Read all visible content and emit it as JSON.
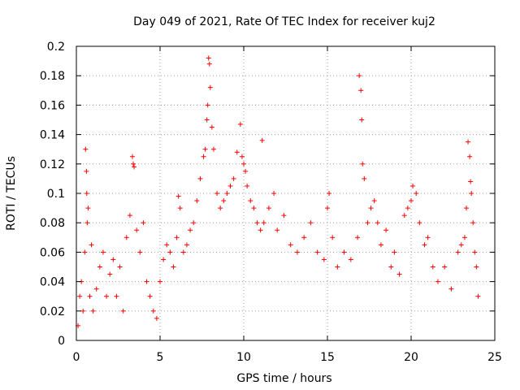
{
  "chart_data": {
    "type": "scatter",
    "title": "Day 049 of 2021, Rate Of TEC Index for receiver kuj2",
    "xlabel": "GPS time / hours",
    "ylabel": "ROTI / TECUs",
    "xlim": [
      0,
      25
    ],
    "ylim": [
      0,
      0.2
    ],
    "x_ticks": [
      0,
      5,
      10,
      15,
      20,
      25
    ],
    "x_tick_labels": [
      "0",
      "5",
      "10",
      "15",
      "20",
      "25"
    ],
    "y_ticks": [
      0,
      0.02,
      0.04,
      0.06,
      0.08,
      0.1,
      0.12,
      0.14,
      0.16,
      0.18,
      0.2
    ],
    "y_tick_labels": [
      "0",
      "0.02",
      "0.04",
      "0.06",
      "0.08",
      "0.1",
      "0.12",
      "0.14",
      "0.16",
      "0.18",
      "0.2"
    ],
    "grid": true,
    "marker": "plus",
    "color": "#ff0000",
    "series": [
      {
        "name": "ROTI",
        "points": [
          [
            0.1,
            0.01
          ],
          [
            0.2,
            0.03
          ],
          [
            0.3,
            0.04
          ],
          [
            0.4,
            0.02
          ],
          [
            0.5,
            0.06
          ],
          [
            0.55,
            0.13
          ],
          [
            0.6,
            0.115
          ],
          [
            0.62,
            0.1
          ],
          [
            0.65,
            0.08
          ],
          [
            0.7,
            0.09
          ],
          [
            0.8,
            0.03
          ],
          [
            0.9,
            0.065
          ],
          [
            1.0,
            0.02
          ],
          [
            1.2,
            0.035
          ],
          [
            1.4,
            0.05
          ],
          [
            1.6,
            0.06
          ],
          [
            1.8,
            0.03
          ],
          [
            2.0,
            0.045
          ],
          [
            2.2,
            0.055
          ],
          [
            2.4,
            0.03
          ],
          [
            2.6,
            0.05
          ],
          [
            2.8,
            0.02
          ],
          [
            3.0,
            0.07
          ],
          [
            3.2,
            0.085
          ],
          [
            3.35,
            0.125
          ],
          [
            3.4,
            0.12
          ],
          [
            3.45,
            0.118
          ],
          [
            3.6,
            0.075
          ],
          [
            3.8,
            0.06
          ],
          [
            4.0,
            0.08
          ],
          [
            4.2,
            0.04
          ],
          [
            4.4,
            0.03
          ],
          [
            4.6,
            0.02
          ],
          [
            4.8,
            0.015
          ],
          [
            5.0,
            0.04
          ],
          [
            5.2,
            0.055
          ],
          [
            5.4,
            0.065
          ],
          [
            5.6,
            0.06
          ],
          [
            5.8,
            0.05
          ],
          [
            6.0,
            0.07
          ],
          [
            6.1,
            0.098
          ],
          [
            6.2,
            0.09
          ],
          [
            6.4,
            0.06
          ],
          [
            6.6,
            0.065
          ],
          [
            6.8,
            0.075
          ],
          [
            7.0,
            0.08
          ],
          [
            7.2,
            0.095
          ],
          [
            7.4,
            0.11
          ],
          [
            7.6,
            0.125
          ],
          [
            7.7,
            0.13
          ],
          [
            7.8,
            0.15
          ],
          [
            7.85,
            0.16
          ],
          [
            7.9,
            0.192
          ],
          [
            7.95,
            0.188
          ],
          [
            8.0,
            0.172
          ],
          [
            8.1,
            0.145
          ],
          [
            8.2,
            0.13
          ],
          [
            8.4,
            0.1
          ],
          [
            8.6,
            0.09
          ],
          [
            8.8,
            0.095
          ],
          [
            9.0,
            0.1
          ],
          [
            9.2,
            0.105
          ],
          [
            9.4,
            0.11
          ],
          [
            9.6,
            0.128
          ],
          [
            9.8,
            0.147
          ],
          [
            9.9,
            0.125
          ],
          [
            10.0,
            0.12
          ],
          [
            10.1,
            0.115
          ],
          [
            10.2,
            0.105
          ],
          [
            10.4,
            0.095
          ],
          [
            10.6,
            0.09
          ],
          [
            10.8,
            0.08
          ],
          [
            11.0,
            0.075
          ],
          [
            11.1,
            0.136
          ],
          [
            11.2,
            0.08
          ],
          [
            11.5,
            0.09
          ],
          [
            11.8,
            0.1
          ],
          [
            12.0,
            0.075
          ],
          [
            12.4,
            0.085
          ],
          [
            12.8,
            0.065
          ],
          [
            13.2,
            0.06
          ],
          [
            13.6,
            0.07
          ],
          [
            14.0,
            0.08
          ],
          [
            14.4,
            0.06
          ],
          [
            14.8,
            0.055
          ],
          [
            15.0,
            0.09
          ],
          [
            15.1,
            0.1
          ],
          [
            15.3,
            0.07
          ],
          [
            15.6,
            0.05
          ],
          [
            16.0,
            0.06
          ],
          [
            16.4,
            0.055
          ],
          [
            16.8,
            0.07
          ],
          [
            16.9,
            0.18
          ],
          [
            17.0,
            0.17
          ],
          [
            17.05,
            0.15
          ],
          [
            17.1,
            0.12
          ],
          [
            17.2,
            0.11
          ],
          [
            17.4,
            0.08
          ],
          [
            17.6,
            0.09
          ],
          [
            17.8,
            0.095
          ],
          [
            18.0,
            0.08
          ],
          [
            18.2,
            0.065
          ],
          [
            18.5,
            0.075
          ],
          [
            18.8,
            0.05
          ],
          [
            19.0,
            0.06
          ],
          [
            19.3,
            0.045
          ],
          [
            19.6,
            0.085
          ],
          [
            19.8,
            0.09
          ],
          [
            20.0,
            0.095
          ],
          [
            20.1,
            0.105
          ],
          [
            20.3,
            0.1
          ],
          [
            20.5,
            0.08
          ],
          [
            20.8,
            0.065
          ],
          [
            21.0,
            0.07
          ],
          [
            21.3,
            0.05
          ],
          [
            21.6,
            0.04
          ],
          [
            22.0,
            0.05
          ],
          [
            22.4,
            0.035
          ],
          [
            22.8,
            0.06
          ],
          [
            23.0,
            0.065
          ],
          [
            23.2,
            0.07
          ],
          [
            23.3,
            0.09
          ],
          [
            23.4,
            0.135
          ],
          [
            23.5,
            0.125
          ],
          [
            23.55,
            0.108
          ],
          [
            23.6,
            0.1
          ],
          [
            23.7,
            0.08
          ],
          [
            23.8,
            0.06
          ],
          [
            23.9,
            0.05
          ],
          [
            24.0,
            0.03
          ]
        ]
      }
    ]
  }
}
